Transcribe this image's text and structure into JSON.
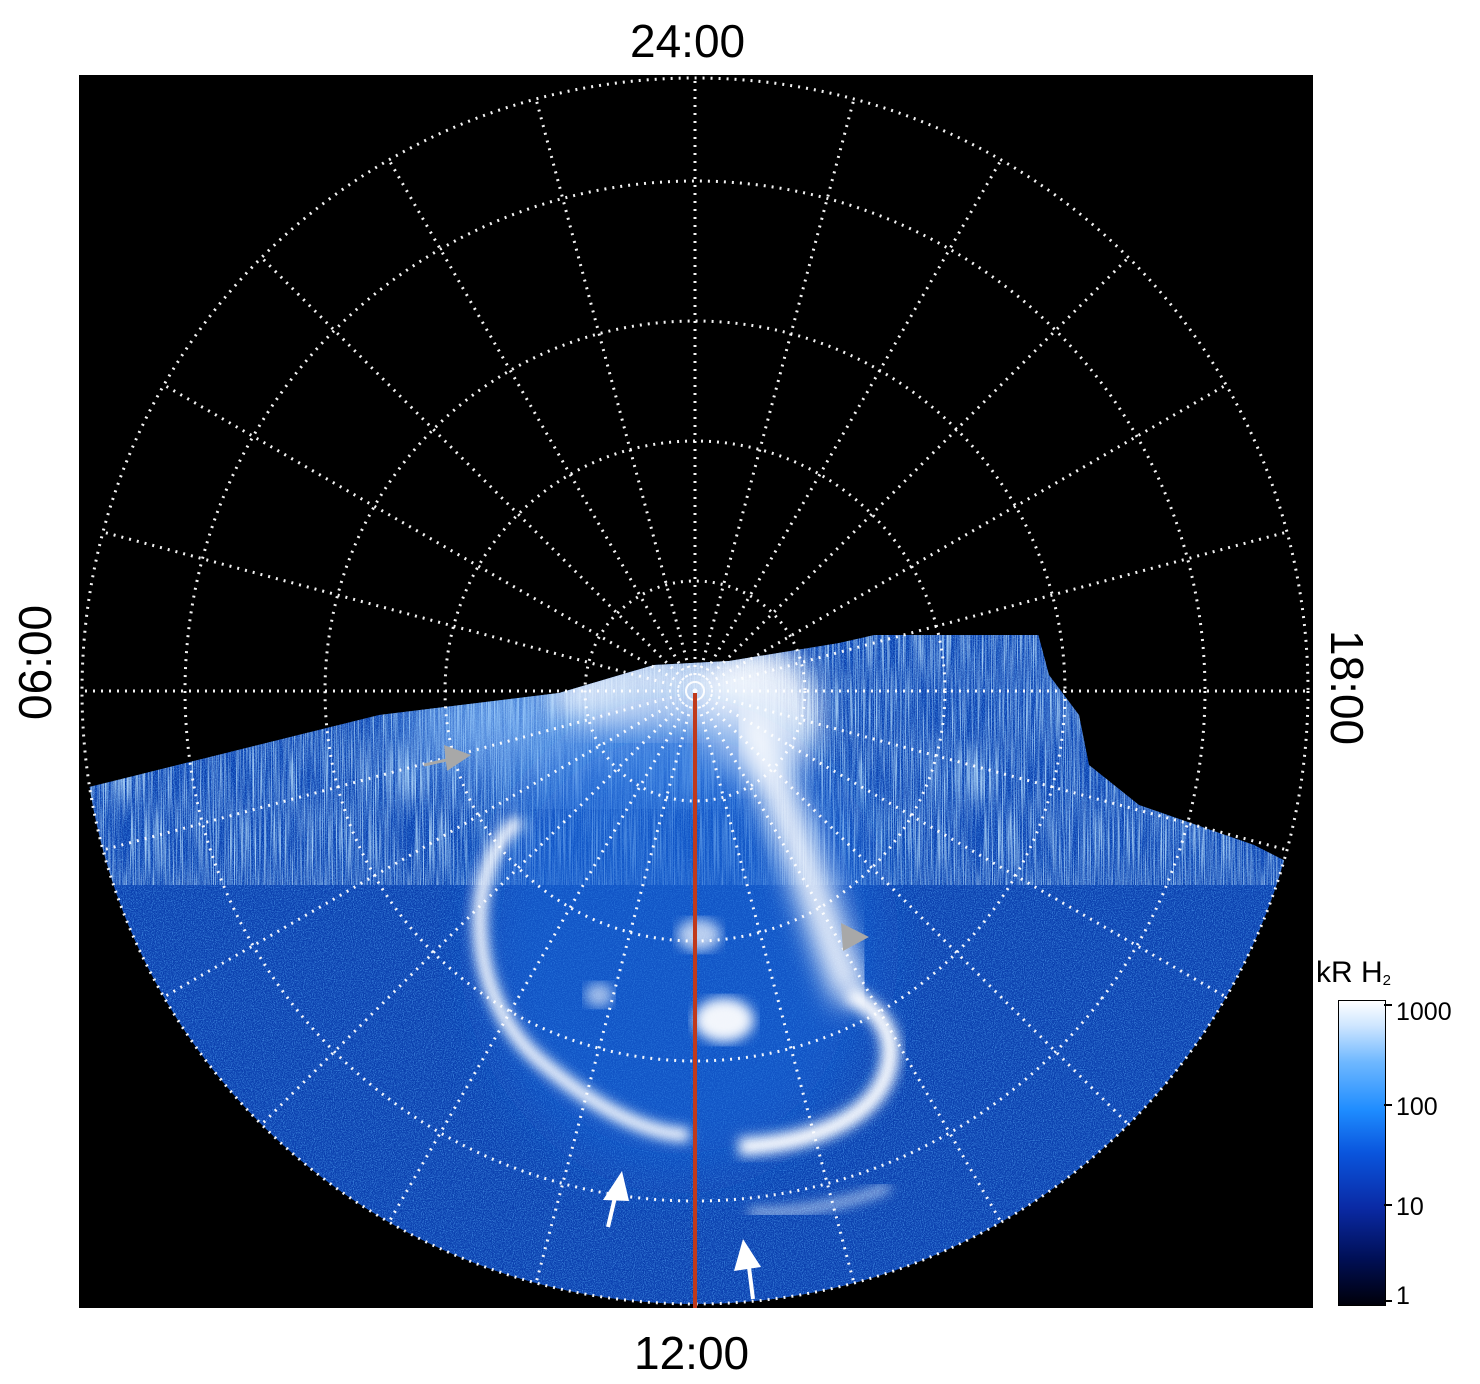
{
  "local_time_labels": {
    "top": "24:00",
    "bottom": "12:00",
    "left": "06:00",
    "right": "18:00"
  },
  "colorbar": {
    "title": "kR H",
    "title_subscript": "2",
    "scale": "log",
    "ticks": [
      "1000",
      "100",
      "10",
      "1"
    ],
    "colors": [
      "#000000",
      "#001a66",
      "#0a55dd",
      "#1e8cff",
      "#cfe6ff",
      "#ffffff"
    ]
  },
  "overlay": {
    "grid_color": "#ffffff",
    "meridian_line_color": "#c0391b",
    "gray_arrow_color": "#a8a8a8",
    "white_arrow_color": "#ffffff"
  },
  "icons": [
    "gray-arrow-icon",
    "white-arrow-icon"
  ]
}
